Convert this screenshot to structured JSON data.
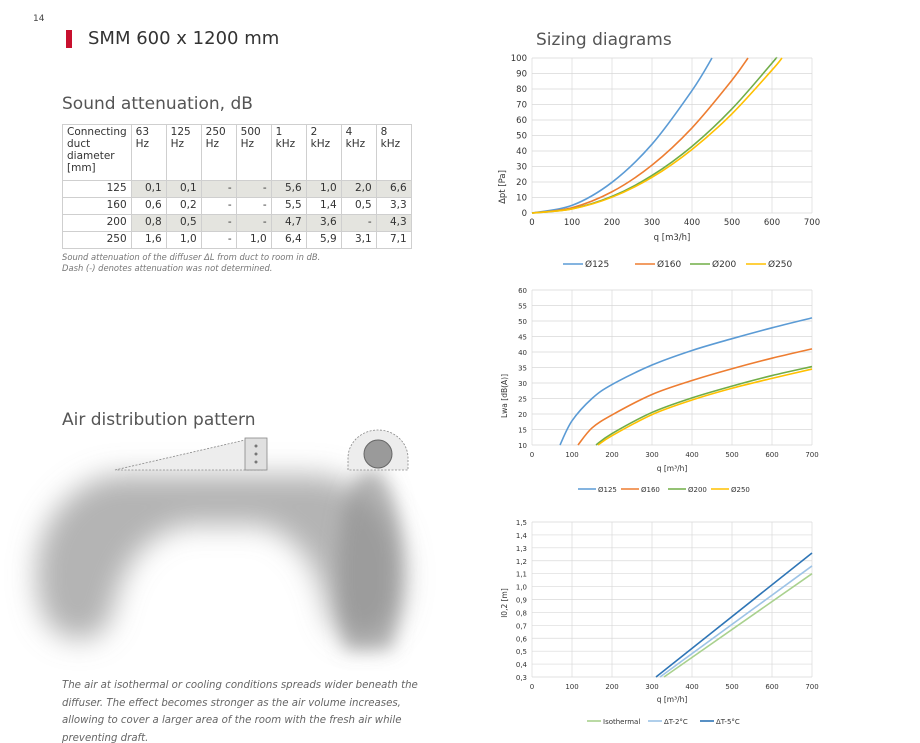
{
  "page": {
    "page_number": "14",
    "title": "SMM 600 x 1200 mm",
    "accent_color": "#c8102e"
  },
  "sound": {
    "heading": "Sound attenuation, dB",
    "headers": [
      "Connecting duct diameter [mm]",
      "63 Hz",
      "125 Hz",
      "250 Hz",
      "500 Hz",
      "1 kHz",
      "2 kHz",
      "4 kHz",
      "8 kHz"
    ],
    "rows": [
      {
        "diameter": "125",
        "values": [
          "0,1",
          "0,1",
          "-",
          "-",
          "5,6",
          "1,0",
          "2,0",
          "6,6"
        ]
      },
      {
        "diameter": "160",
        "values": [
          "0,6",
          "0,2",
          "-",
          "-",
          "5,5",
          "1,4",
          "0,5",
          "3,3"
        ]
      },
      {
        "diameter": "200",
        "values": [
          "0,8",
          "0,5",
          "-",
          "-",
          "4,7",
          "3,6",
          "-",
          "4,3"
        ]
      },
      {
        "diameter": "250",
        "values": [
          "1,6",
          "1,0",
          "-",
          "1,0",
          "6,4",
          "5,9",
          "3,1",
          "7,1"
        ]
      }
    ],
    "caption_line1": "Sound attenuation of the diffuser ΔL from duct to room in dB.",
    "caption_line2": "Dash (-) denotes attenuation was not determined."
  },
  "air": {
    "heading": "Air distribution pattern",
    "description": "The air at isothermal or cooling conditions spreads wider beneath the diffuser. The effect becomes stronger as the air volume increases, allowing to cover a larger area of the room with the fresh air while preventing draft."
  },
  "sizing_heading": "Sizing diagrams",
  "chart_data": [
    {
      "type": "line",
      "xlabel": "q [m3/h]",
      "ylabel": "Δpt [Pa]",
      "xlim": [
        0,
        700
      ],
      "ylim": [
        0,
        100
      ],
      "xticks": [
        0,
        100,
        200,
        300,
        400,
        500,
        600,
        700
      ],
      "yticks": [
        0,
        10,
        20,
        30,
        40,
        50,
        60,
        70,
        80,
        90,
        100
      ],
      "grid": true,
      "legend": "bottom",
      "series": [
        {
          "name": "Ø125",
          "color": "#5b9bd5",
          "x": [
            0,
            100,
            200,
            300,
            400,
            450
          ],
          "y": [
            0,
            4.9,
            19.8,
            44.4,
            79.0,
            100
          ]
        },
        {
          "name": "Ø160",
          "color": "#ed7d31",
          "x": [
            0,
            100,
            200,
            300,
            400,
            500,
            540
          ],
          "y": [
            0,
            3.4,
            13.7,
            30.9,
            54.9,
            85.7,
            100
          ]
        },
        {
          "name": "Ø200",
          "color": "#70ad47",
          "x": [
            0,
            100,
            200,
            300,
            400,
            500,
            600,
            610
          ],
          "y": [
            0,
            2.7,
            10.7,
            24.2,
            43.0,
            67.2,
            96.7,
            100
          ]
        },
        {
          "name": "Ø250",
          "color": "#ffc000",
          "x": [
            0,
            100,
            200,
            300,
            400,
            500,
            600,
            625
          ],
          "y": [
            0,
            2.6,
            10.2,
            23.0,
            41.0,
            64.0,
            92.2,
            100
          ]
        }
      ]
    },
    {
      "type": "line",
      "xlabel": "q [m³/h]",
      "ylabel": "Lwa [dB(A)]",
      "xlim": [
        0,
        700
      ],
      "ylim": [
        10,
        60
      ],
      "xticks": [
        0,
        100,
        200,
        300,
        400,
        500,
        600,
        700
      ],
      "yticks": [
        10,
        15,
        20,
        25,
        30,
        35,
        40,
        45,
        50,
        55,
        60
      ],
      "grid": true,
      "legend": "bottom",
      "series": [
        {
          "name": "Ø125",
          "color": "#5b9bd5",
          "x": [
            70,
            100,
            150,
            200,
            300,
            400,
            500,
            600,
            700
          ],
          "y": [
            10,
            17.8,
            25.0,
            29.5,
            35.8,
            40.5,
            44.3,
            47.8,
            51.0
          ]
        },
        {
          "name": "Ø160",
          "color": "#ed7d31",
          "x": [
            115,
            150,
            200,
            300,
            400,
            500,
            600,
            700
          ],
          "y": [
            10,
            15.5,
            19.7,
            26.3,
            30.8,
            34.6,
            38.0,
            41.0
          ]
        },
        {
          "name": "Ø200",
          "color": "#70ad47",
          "x": [
            160,
            200,
            300,
            400,
            500,
            600,
            700
          ],
          "y": [
            10,
            13.7,
            20.5,
            25.2,
            29.0,
            32.4,
            35.3
          ]
        },
        {
          "name": "Ø250",
          "color": "#ffc000",
          "x": [
            165,
            200,
            300,
            400,
            500,
            600,
            700
          ],
          "y": [
            10,
            13.0,
            19.8,
            24.5,
            28.3,
            31.5,
            34.5
          ]
        }
      ]
    },
    {
      "type": "line",
      "xlabel": "q [m³/h]",
      "ylabel": "l0,2 [m]",
      "xlim": [
        0,
        700
      ],
      "ylim": [
        0.3,
        1.5
      ],
      "xticks": [
        0,
        100,
        200,
        300,
        400,
        500,
        600,
        700
      ],
      "yticks": [
        "0,3",
        "0,4",
        "0,5",
        "0,6",
        "0,7",
        "0,8",
        "0,9",
        "1,0",
        "1,1",
        "1,2",
        "1,3",
        "1,4",
        "1,5"
      ],
      "grid": true,
      "legend": "bottom",
      "series": [
        {
          "name": "Isothermal",
          "color": "#a9d18e",
          "x": [
            330,
            700
          ],
          "y": [
            0.3,
            1.1
          ]
        },
        {
          "name": "ΔT-2°C",
          "color": "#9dc3e6",
          "x": [
            320,
            700
          ],
          "y": [
            0.3,
            1.16
          ]
        },
        {
          "name": "ΔT-5°C",
          "color": "#2e75b6",
          "x": [
            310,
            700
          ],
          "y": [
            0.3,
            1.26
          ]
        }
      ]
    }
  ]
}
